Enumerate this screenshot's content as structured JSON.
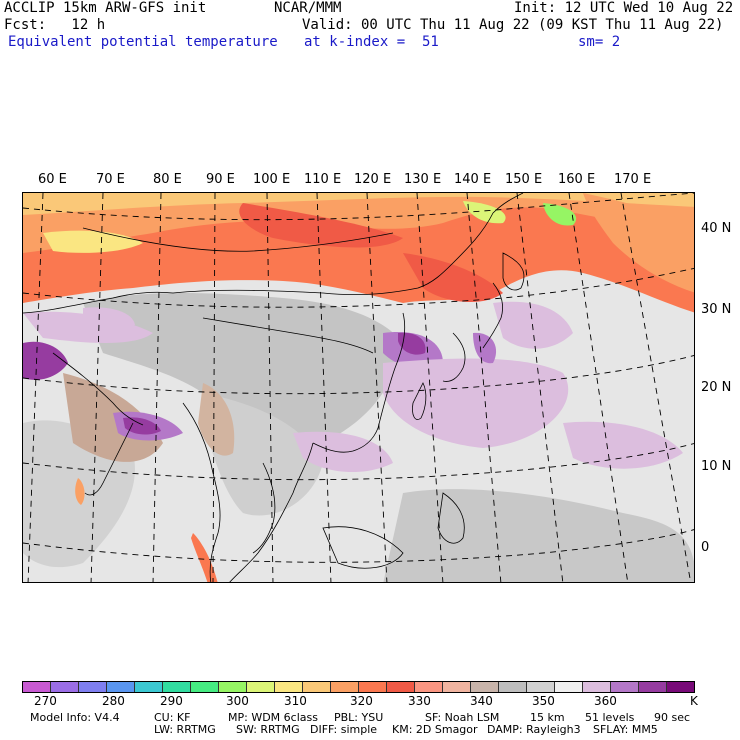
{
  "header": {
    "left_line1": "ACCLIP 15km ARW-GFS init",
    "left_line2": "Fcst:   12 h",
    "field_name": "Equivalent potential temperature",
    "center_line1": "NCAR/MMM",
    "init": "Init: 12 UTC Wed 10 Aug 22",
    "valid": "Valid: 00 UTC Thu 11 Aug 22 (09 KST Thu 11 Aug 22)",
    "level": "at k-index =  51",
    "smoothing": "sm= 2"
  },
  "map": {
    "lon_labels": [
      "60 E",
      "70 E",
      "80 E",
      "90 E",
      "100 E",
      "110 E",
      "120 E",
      "130 E",
      "140 E",
      "150 E",
      "160 E",
      "170 E"
    ],
    "lat_labels": [
      "40 N",
      "30 N",
      "20 N",
      "10 N",
      "0"
    ]
  },
  "colorbar": {
    "colors": [
      "#c85ad2",
      "#9b6ee6",
      "#7f7ff0",
      "#5a96f0",
      "#3cc8d2",
      "#32dca0",
      "#46eb82",
      "#96f564",
      "#dcf578",
      "#fae682",
      "#fac878",
      "#faa064",
      "#fa7850",
      "#f05a46",
      "#fa9682",
      "#f0b4a0",
      "#c8b4aa",
      "#bebebe",
      "#d2d2d2",
      "#f0f0f0",
      "#dcbede",
      "#b478c8",
      "#963ca0",
      "#780a78"
    ],
    "tick_labels": [
      "270",
      "280",
      "290",
      "300",
      "310",
      "320",
      "330",
      "340",
      "350",
      "360"
    ],
    "unit": "K"
  },
  "model_info": {
    "line1": [
      "Model Info: V4.4",
      "CU: KF",
      "MP: WDM 6class",
      "PBL: YSU",
      "SF: Noah LSM",
      "15 km",
      "51 levels",
      "90 sec"
    ],
    "line2": [
      "LW: RRTMG",
      "SW: RRTMG",
      "DIFF: simple",
      "KM: 2D Smagor",
      "DAMP: Rayleigh3",
      "SFLAY: MM5"
    ]
  }
}
